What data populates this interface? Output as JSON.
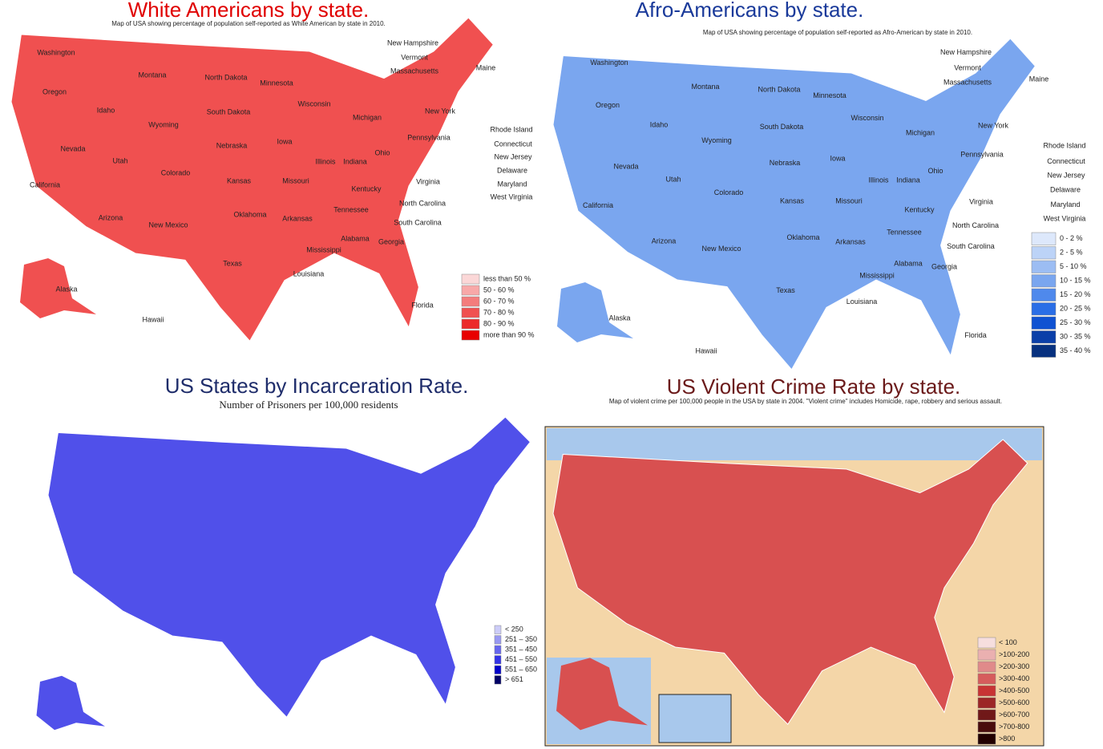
{
  "panels": [
    {
      "title": "White Americans by state.",
      "subtitle": "Map of USA showing percentage of population self-reported as White American by state in 2010.",
      "legend": [
        {
          "label": "less than 50 %",
          "color": "#fbd7d7"
        },
        {
          "label": "50 - 60 %",
          "color": "#f8a8a8"
        },
        {
          "label": "60 - 70 %",
          "color": "#f47c7c"
        },
        {
          "label": "70 - 80 %",
          "color": "#f05050"
        },
        {
          "label": "80 - 90 %",
          "color": "#ec2a2a"
        },
        {
          "label": "more than 90 %",
          "color": "#e80000"
        }
      ],
      "state_labels": [
        "Washington",
        "Oregon",
        "Idaho",
        "Montana",
        "Wyoming",
        "North Dakota",
        "South Dakota",
        "Minnesota",
        "Wisconsin",
        "Michigan",
        "Iowa",
        "Nebraska",
        "Nevada",
        "Utah",
        "Colorado",
        "California",
        "Arizona",
        "New Mexico",
        "Kansas",
        "Oklahoma",
        "Texas",
        "Missouri",
        "Arkansas",
        "Louisiana",
        "Illinois",
        "Indiana",
        "Ohio",
        "Kentucky",
        "Tennessee",
        "Mississippi",
        "Alabama",
        "Georgia",
        "Florida",
        "South Carolina",
        "North Carolina",
        "Virginia",
        "Pennsylvania",
        "New York",
        "Maine",
        "Alaska",
        "Hawaii",
        "New Hampshire",
        "Vermont",
        "Massachusetts",
        "Rhode Island",
        "Connecticut",
        "New Jersey",
        "Delaware",
        "Maryland",
        "West Virginia"
      ]
    },
    {
      "title": "Afro-Americans by state.",
      "subtitle": "Map of USA showing percentage of population self-reported as Afro-American by state in 2010.",
      "legend": [
        {
          "label": "0 - 2 %",
          "color": "#dde8fb"
        },
        {
          "label": "2 - 5 %",
          "color": "#bcd3f7"
        },
        {
          "label": "5 - 10 %",
          "color": "#9cbdf3"
        },
        {
          "label": "10 - 15 %",
          "color": "#7aa6ef"
        },
        {
          "label": "15 - 20 %",
          "color": "#4f89ec"
        },
        {
          "label": "20 - 25 %",
          "color": "#2a6ee6"
        },
        {
          "label": "25 - 30 %",
          "color": "#0f52d2"
        },
        {
          "label": "30 - 35 %",
          "color": "#0a3fa8"
        },
        {
          "label": "35 - 40 %",
          "color": "#06307f"
        }
      ],
      "state_labels": [
        "Washington",
        "Oregon",
        "Idaho",
        "Montana",
        "Wyoming",
        "North Dakota",
        "South Dakota",
        "Minnesota",
        "Wisconsin",
        "Michigan",
        "Iowa",
        "Nebraska",
        "Nevada",
        "Utah",
        "Colorado",
        "California",
        "Arizona",
        "New Mexico",
        "Kansas",
        "Oklahoma",
        "Texas",
        "Missouri",
        "Arkansas",
        "Louisiana",
        "Illinois",
        "Indiana",
        "Ohio",
        "Kentucky",
        "Tennessee",
        "Mississippi",
        "Alabama",
        "Georgia",
        "Florida",
        "South Carolina",
        "North Carolina",
        "Virginia",
        "Pennsylvania",
        "New York",
        "Maine",
        "Alaska",
        "Hawaii",
        "New Hampshire",
        "Vermont",
        "Massachusetts",
        "Rhode Island",
        "Connecticut",
        "New Jersey",
        "Delaware",
        "Maryland",
        "West Virginia"
      ]
    },
    {
      "title": "US States by Incarceration Rate.",
      "subtitle": "Number of Prisoners per 100,000 residents",
      "legend": [
        {
          "label": "< 250",
          "color": "#ccccf8"
        },
        {
          "label": "251 – 350",
          "color": "#9999f2"
        },
        {
          "label": "351 – 450",
          "color": "#6666ee"
        },
        {
          "label": "451 – 550",
          "color": "#3333e6"
        },
        {
          "label": "551 – 650",
          "color": "#0000c8"
        },
        {
          "label": "> 651",
          "color": "#000066"
        }
      ]
    },
    {
      "title": "US Violent Crime Rate by state.",
      "subtitle": "Map of violent crime per 100,000 people in the USA by state in 2004. \"Violent crime\" includes Homicide, rape, robbery and serious assault.",
      "legend": [
        {
          "label": "< 100",
          "color": "#f6dede"
        },
        {
          "label": ">100-200",
          "color": "#eab0b0"
        },
        {
          "label": ">200-300",
          "color": "#e08a8a"
        },
        {
          "label": ">300-400",
          "color": "#d65c5c"
        },
        {
          "label": ">400-500",
          "color": "#c83434"
        },
        {
          "label": ">500-600",
          "color": "#9c2626"
        },
        {
          "label": ">600-700",
          "color": "#701818"
        },
        {
          "label": ">700-800",
          "color": "#4a0c0c"
        },
        {
          "label": ">800",
          "color": "#220000"
        }
      ]
    }
  ]
}
